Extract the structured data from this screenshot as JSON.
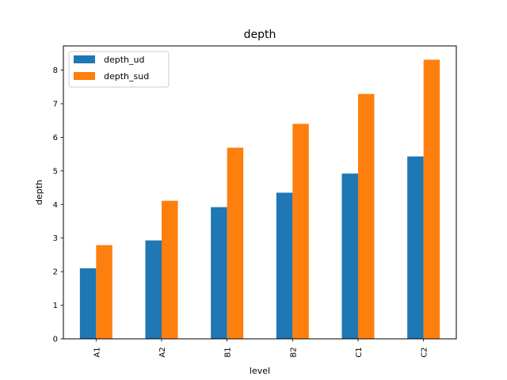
{
  "chart_data": {
    "type": "bar",
    "title": "depth",
    "xlabel": "level",
    "ylabel": "depth",
    "categories": [
      "A1",
      "A2",
      "B1",
      "B2",
      "C1",
      "C2"
    ],
    "series": [
      {
        "name": "depth_ud",
        "color": "#1f77b4",
        "values": [
          2.1,
          2.93,
          3.92,
          4.35,
          4.92,
          5.43
        ]
      },
      {
        "name": "depth_sud",
        "color": "#ff7f0e",
        "values": [
          2.79,
          4.11,
          5.69,
          6.4,
          7.29,
          8.31
        ]
      }
    ],
    "ylim": [
      0,
      8.72
    ],
    "yticks": [
      0,
      1,
      2,
      3,
      4,
      5,
      6,
      7,
      8
    ],
    "grid": false,
    "legend_position": "upper-left"
  }
}
